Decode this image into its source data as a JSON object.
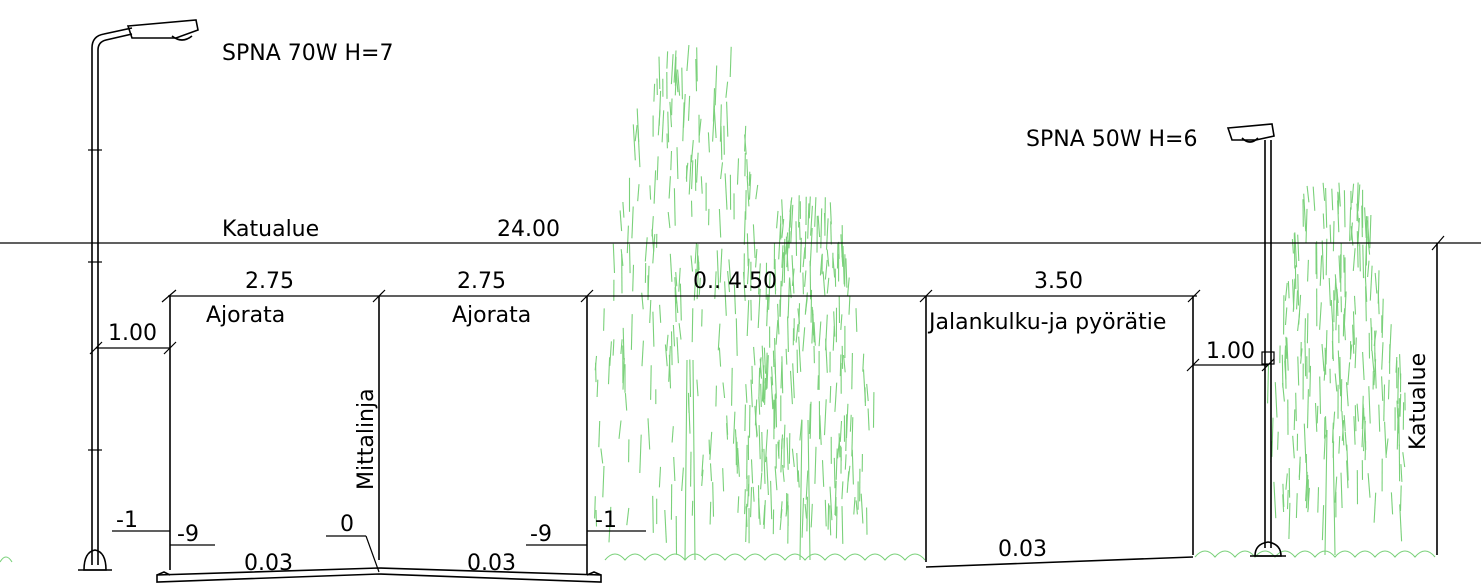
{
  "lamps": {
    "left_label": "SPNA 70W H=7",
    "right_label": "SPNA 50W H=6"
  },
  "dimensions": {
    "katualue_label": "Katualue",
    "total_width": "24.00",
    "ajorata_left_width": "2.75",
    "ajorata_right_width": "2.75",
    "green_strip_width": "0.. 4.50",
    "path_width": "3.50",
    "offset_left": "1.00",
    "offset_right": "1.00"
  },
  "labels": {
    "ajorata_left": "Ajorata",
    "ajorata_right": "Ajorata",
    "mittalinja": "Mittalinja",
    "jalankulku": "Jalankulku-ja pyörätie",
    "katualue_vertical": "Katualue"
  },
  "levels": {
    "left_outer": "-1",
    "left_inner": "-9",
    "center": "0",
    "right_inner": "-9",
    "right_outer": "-1"
  },
  "slopes": {
    "left": "0.03",
    "right": "0.03",
    "path": "0.03"
  },
  "colors": {
    "ink": "#000000",
    "vegetation": "#7ad17a"
  }
}
